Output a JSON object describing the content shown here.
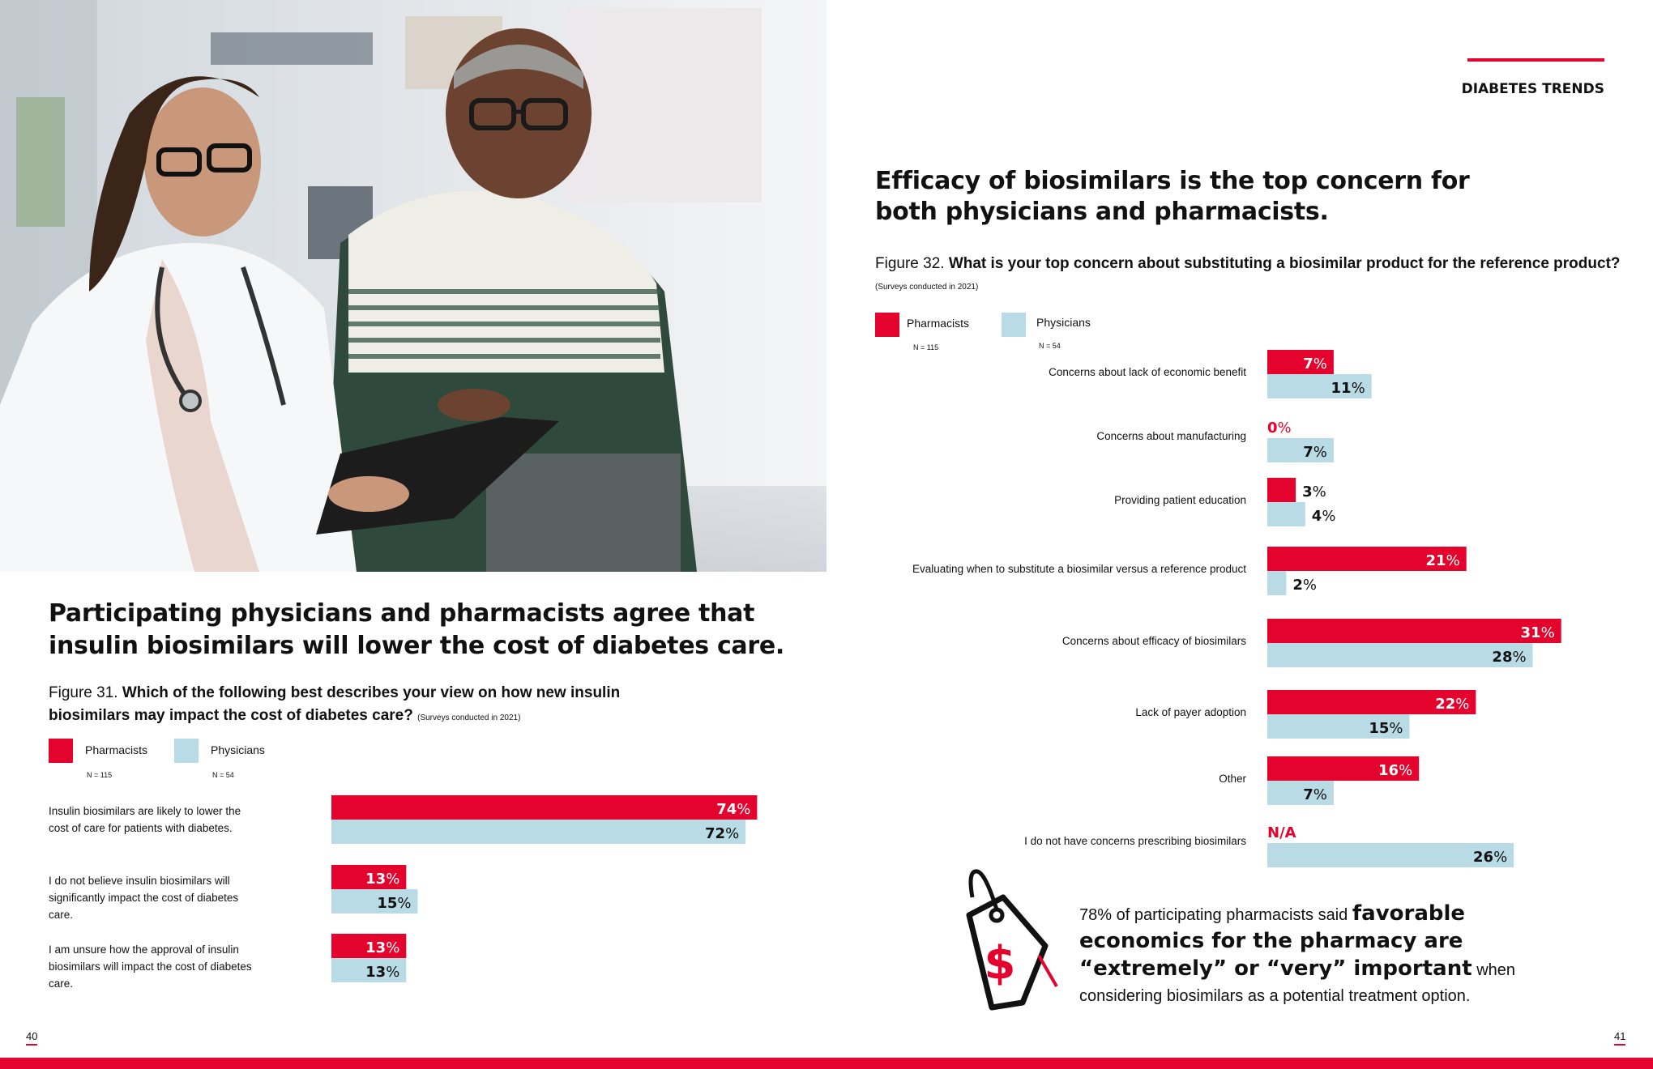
{
  "header": {
    "section_title": "DIABETES TRENDS"
  },
  "colors": {
    "pharmacists": "#e4032c",
    "physicians": "#b9dbe6",
    "accent": "#e4032c"
  },
  "left": {
    "heading": "Participating physicians and pharmacists agree that insulin biosimilars will lower the cost of diabetes care.",
    "figure_label": "Figure 31.",
    "figure_question": "Which of the following best describes your view on how new insulin biosimilars may impact the cost of diabetes care?",
    "figure_note": "(Surveys conducted in 2021)",
    "page_number": "40"
  },
  "right": {
    "heading": "Efficacy of biosimilars is the top concern for both physicians and pharmacists.",
    "figure_label": "Figure 32.",
    "figure_question": "What is your top concern about substituting a biosimilar product for the reference product?",
    "figure_note": "(Surveys conducted in 2021)",
    "page_number": "41"
  },
  "legend": {
    "pharmacists": "Pharmacists",
    "pharmacists_n": "N = 115",
    "physicians": "Physicians",
    "physicians_n": "N = 54"
  },
  "callout": {
    "lead": "78% of participating pharmacists said",
    "emphasis": "favorable economics for the pharmacy are “extremely” or “very” important",
    "tail": "when considering biosimilars as a potential treatment option.",
    "icon": "price-tag-dollar-icon"
  },
  "photo": {
    "icon": "doctor-patient-photo"
  },
  "chart_data": [
    {
      "type": "bar",
      "orientation": "horizontal",
      "title": "Figure 31. Which of the following best describes your view on how new insulin biosimilars may impact the cost of diabetes care?",
      "categories": [
        "Insulin biosimilars are likely to lower the cost of care for patients with diabetes.",
        "I do not believe insulin biosimilars will significantly impact the cost of diabetes care.",
        "I am unsure how the approval of insulin biosimilars will impact the cost of diabetes care."
      ],
      "series": [
        {
          "name": "Pharmacists",
          "values": [
            74,
            13,
            13
          ]
        },
        {
          "name": "Physicians",
          "values": [
            72,
            15,
            13
          ]
        }
      ],
      "unit": "%",
      "xlim": [
        0,
        100
      ]
    },
    {
      "type": "bar",
      "orientation": "horizontal",
      "title": "Figure 32. What is your top concern about substituting a biosimilar product for the reference product?",
      "categories": [
        "Concerns about lack of economic benefit",
        "Concerns about manufacturing",
        "Providing patient education",
        "Evaluating when to substitute a biosimilar versus a reference product",
        "Concerns about efficacy of biosimilars",
        "Lack of payer adoption",
        "Other",
        "I do not have concerns prescribing biosimilars"
      ],
      "series": [
        {
          "name": "Pharmacists",
          "values": [
            7,
            0,
            3,
            21,
            31,
            22,
            16,
            null
          ],
          "missing_label": "N/A"
        },
        {
          "name": "Physicians",
          "values": [
            11,
            7,
            4,
            2,
            28,
            15,
            7,
            26
          ]
        }
      ],
      "unit": "%",
      "xlim": [
        0,
        100
      ]
    }
  ]
}
